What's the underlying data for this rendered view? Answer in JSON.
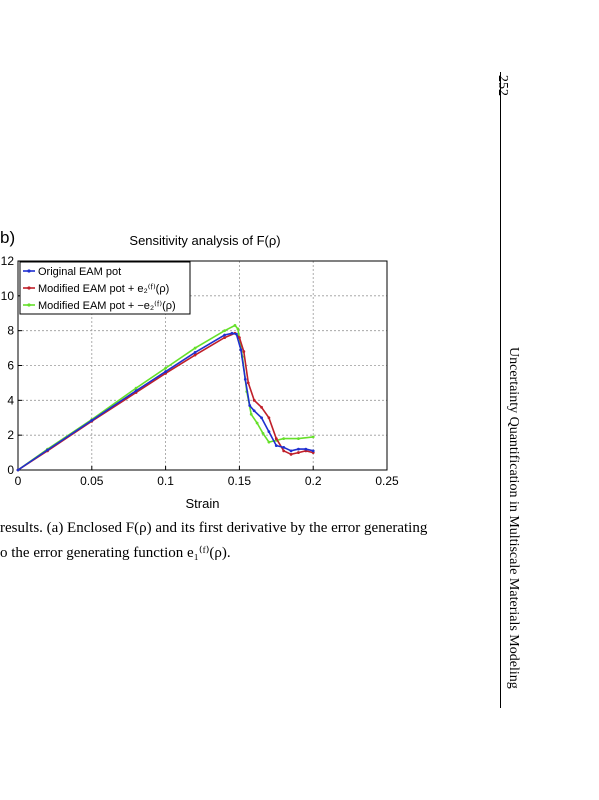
{
  "panel_label": "b)",
  "page_number": "252",
  "running_header": "Uncertainty Quantification in Multiscale Materials Modeling",
  "caption": {
    "line1": "results. (a) Enclosed F(ρ) and its first derivative by the error generating",
    "line2": "o the error generating function e₁⁽ᶠ⁾(ρ)."
  },
  "chart_data": {
    "type": "line",
    "title": "Sensitivity analysis of F(ρ)",
    "xlabel": "Strain",
    "ylabel": "",
    "xlim": [
      0,
      0.25
    ],
    "ylim": [
      0,
      12
    ],
    "x_ticks": [
      "0",
      "0.05",
      "0.1",
      "0.15",
      "0.2",
      "0.25"
    ],
    "y_ticks": [
      "0",
      "2",
      "4",
      "6",
      "8",
      "10",
      "12"
    ],
    "grid": true,
    "legend_position": "top-left",
    "series": [
      {
        "name": "Original EAM pot",
        "color": "#1f2fd0",
        "marker": "dot",
        "x": [
          0,
          0.02,
          0.05,
          0.08,
          0.1,
          0.12,
          0.14,
          0.145,
          0.148,
          0.151,
          0.154,
          0.157,
          0.16,
          0.165,
          0.17,
          0.175,
          0.18,
          0.185,
          0.19,
          0.195,
          0.2
        ],
        "y": [
          0,
          1.15,
          2.85,
          4.55,
          5.65,
          6.75,
          7.75,
          7.85,
          7.8,
          6.9,
          5.2,
          3.7,
          3.4,
          3.0,
          2.2,
          1.4,
          1.3,
          1.1,
          1.2,
          1.2,
          1.1
        ]
      },
      {
        "name": "Modified EAM pot + e₂⁽ᶠ⁾(ρ)",
        "color": "#c0202a",
        "marker": "dot",
        "x": [
          0,
          0.02,
          0.05,
          0.08,
          0.1,
          0.12,
          0.14,
          0.147,
          0.15,
          0.153,
          0.156,
          0.16,
          0.165,
          0.17,
          0.175,
          0.18,
          0.185,
          0.19,
          0.195,
          0.2
        ],
        "y": [
          0,
          1.1,
          2.8,
          4.45,
          5.55,
          6.6,
          7.6,
          7.85,
          7.6,
          6.8,
          5.0,
          4.0,
          3.6,
          3.0,
          1.8,
          1.1,
          0.9,
          1.0,
          1.1,
          1.0
        ]
      },
      {
        "name": "Modified EAM pot + −e₂⁽ᶠ⁾(ρ)",
        "color": "#66e02a",
        "marker": "dot",
        "x": [
          0,
          0.02,
          0.05,
          0.08,
          0.1,
          0.12,
          0.14,
          0.147,
          0.149,
          0.152,
          0.155,
          0.158,
          0.162,
          0.166,
          0.17,
          0.175,
          0.18,
          0.19,
          0.2
        ],
        "y": [
          0,
          1.2,
          2.9,
          4.7,
          5.85,
          7.0,
          8.0,
          8.3,
          8.1,
          6.5,
          4.5,
          3.2,
          2.7,
          2.1,
          1.6,
          1.7,
          1.8,
          1.8,
          1.9
        ]
      }
    ]
  }
}
